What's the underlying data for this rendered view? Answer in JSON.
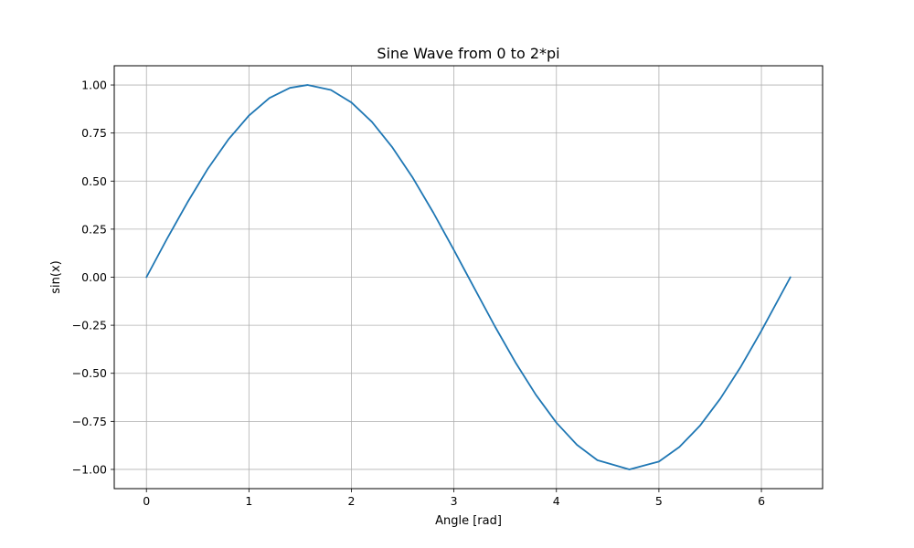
{
  "chart_data": {
    "type": "line",
    "title": "Sine Wave from 0 to 2*pi",
    "xlabel": "Angle [rad]",
    "ylabel": "sin(x)",
    "xlim": [
      -0.314,
      6.597
    ],
    "ylim": [
      -1.1,
      1.1
    ],
    "x_ticks": [
      0,
      1,
      2,
      3,
      4,
      5,
      6
    ],
    "x_tick_labels": [
      "0",
      "1",
      "2",
      "3",
      "4",
      "5",
      "6"
    ],
    "y_ticks": [
      -1.0,
      -0.75,
      -0.5,
      -0.25,
      0.0,
      0.25,
      0.5,
      0.75,
      1.0
    ],
    "y_tick_labels": [
      "−1.00",
      "−0.75",
      "−0.50",
      "−0.25",
      "0.00",
      "0.25",
      "0.50",
      "0.75",
      "1.00"
    ],
    "grid": true,
    "line_color": "#1f77b4",
    "series": [
      {
        "x": [
          0,
          0.2,
          0.4,
          0.6,
          0.8,
          1.0,
          1.2,
          1.4,
          1.571,
          1.8,
          2.0,
          2.2,
          2.4,
          2.6,
          2.8,
          3.0,
          3.2,
          3.4,
          3.6,
          3.8,
          4.0,
          4.2,
          4.4,
          4.712,
          5.0,
          5.2,
          5.4,
          5.6,
          5.8,
          6.0,
          6.283
        ],
        "y": [
          0,
          0.199,
          0.389,
          0.565,
          0.717,
          0.841,
          0.932,
          0.985,
          1.0,
          0.974,
          0.909,
          0.808,
          0.675,
          0.516,
          0.335,
          0.141,
          -0.058,
          -0.256,
          -0.443,
          -0.612,
          -0.757,
          -0.872,
          -0.952,
          -1.0,
          -0.959,
          -0.883,
          -0.773,
          -0.631,
          -0.465,
          -0.279,
          0
        ]
      }
    ]
  }
}
